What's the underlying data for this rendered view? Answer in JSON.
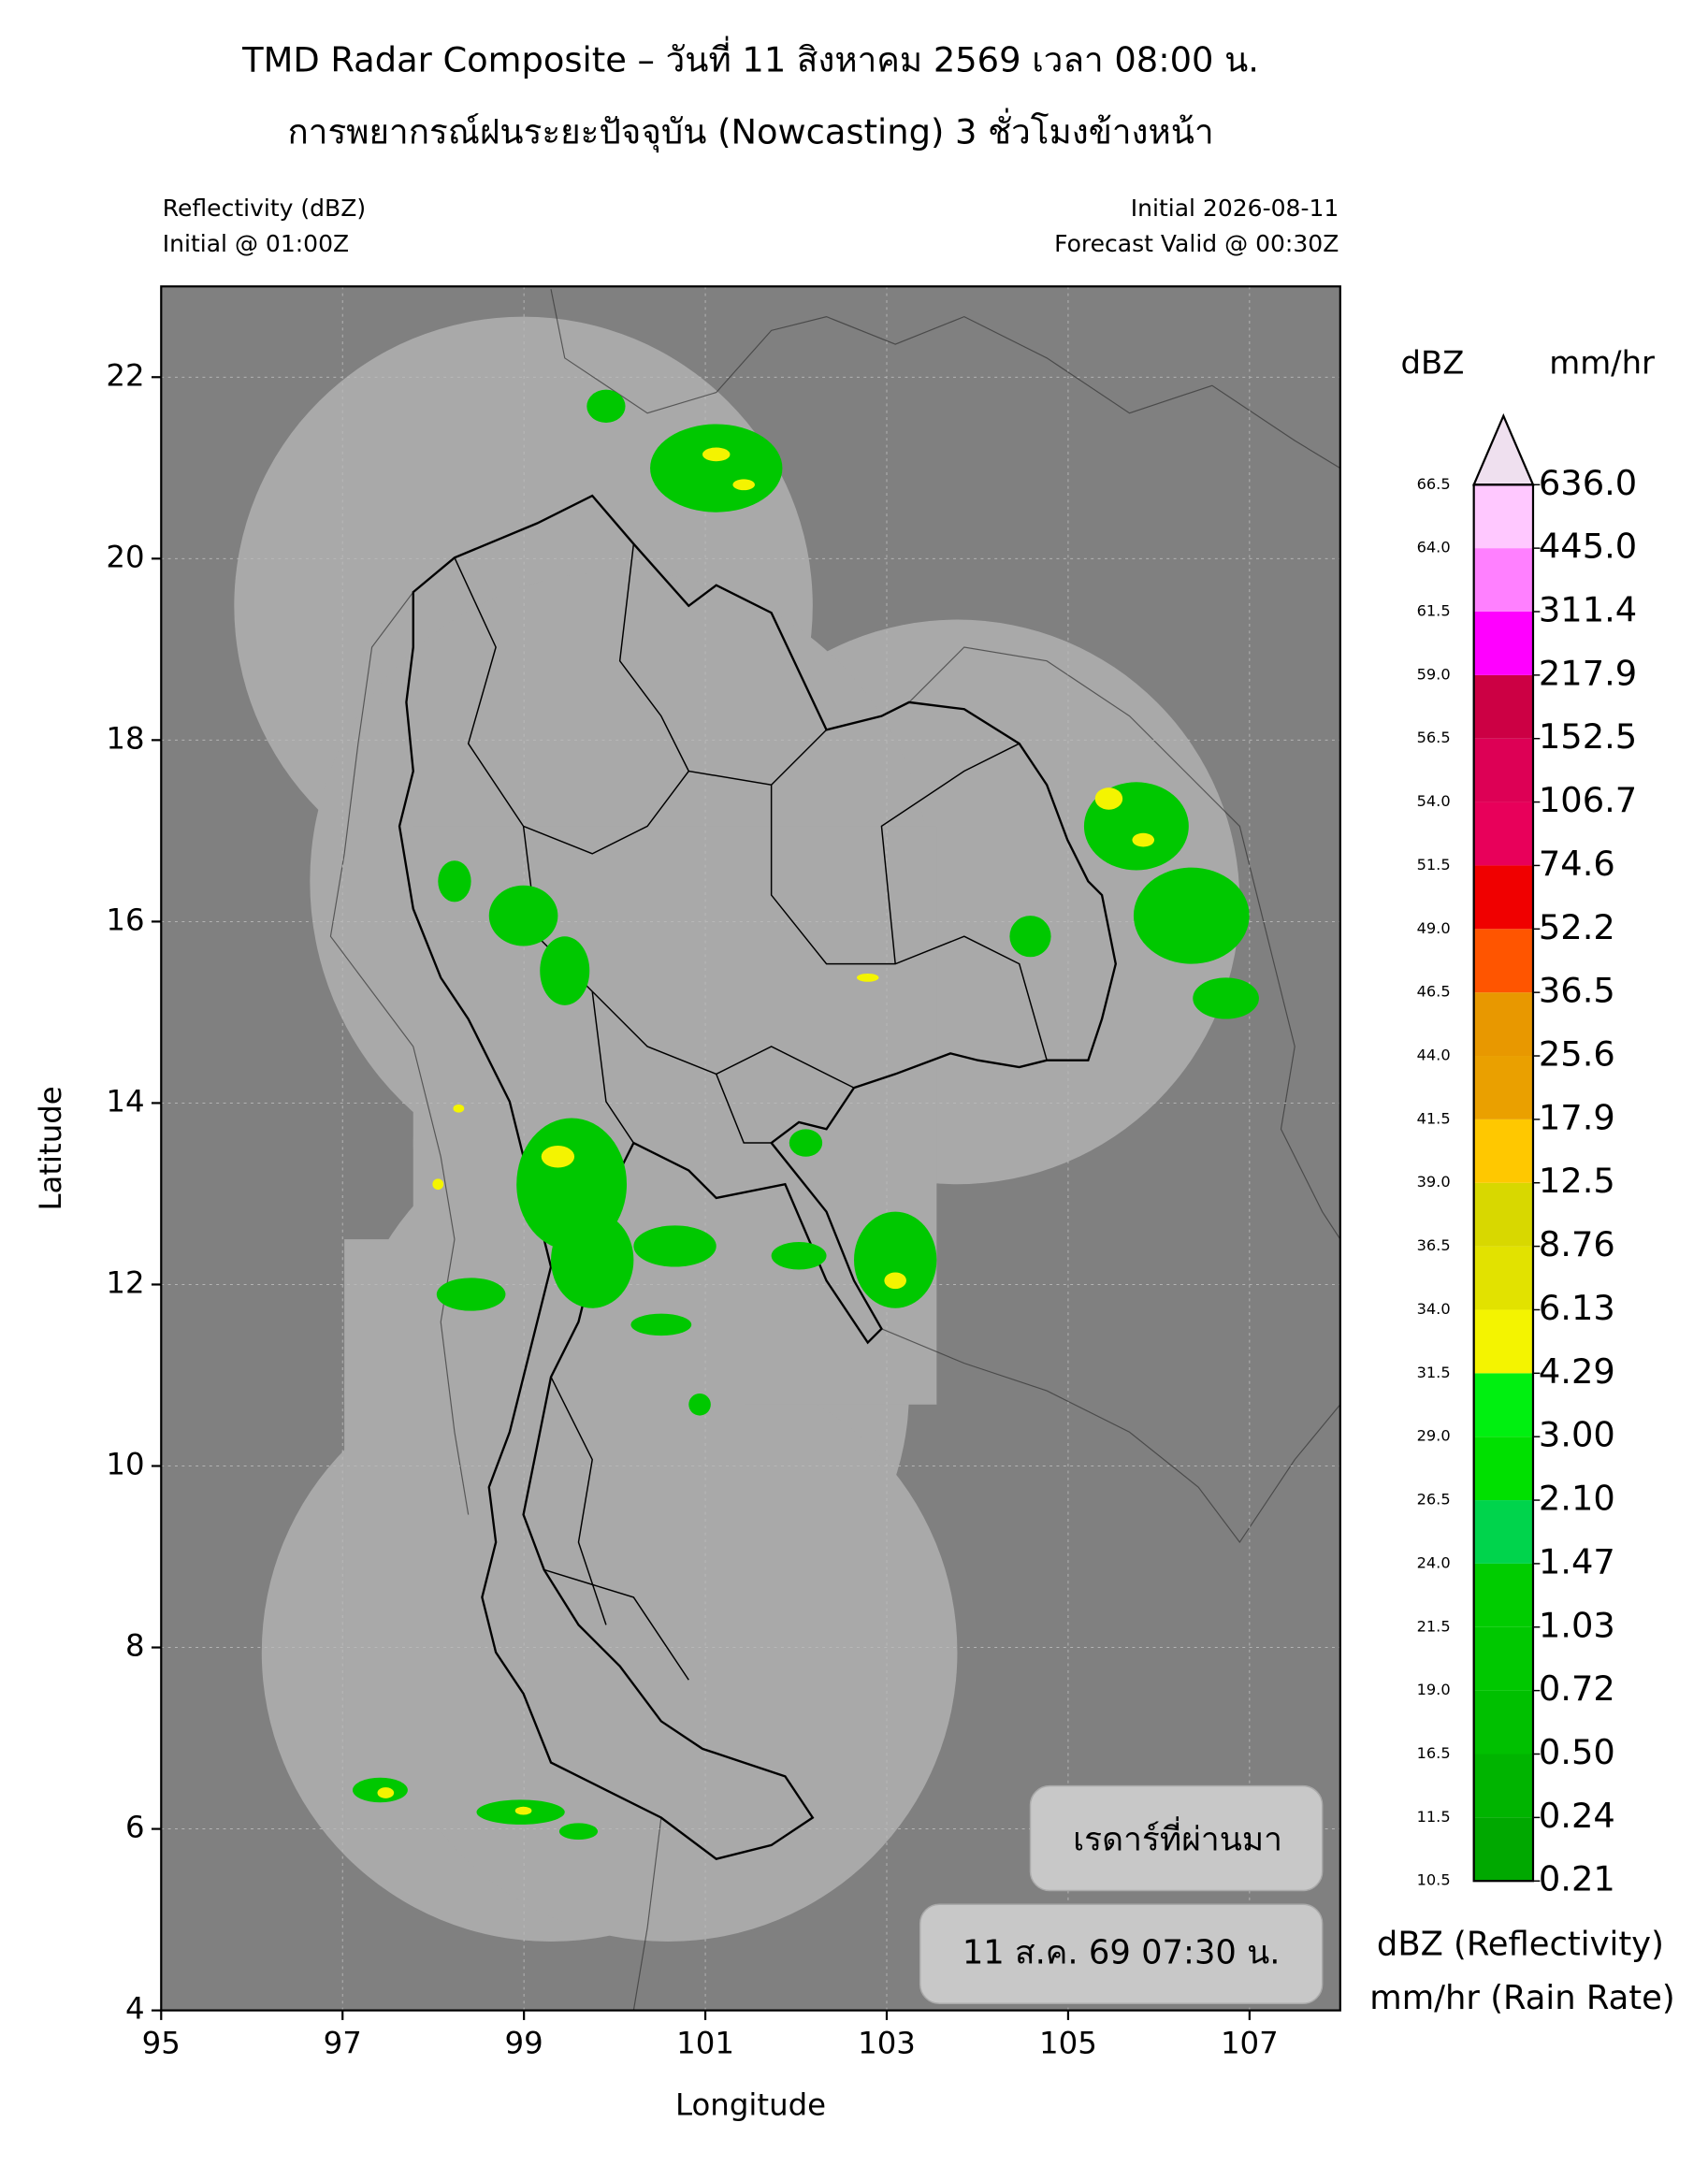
{
  "header": {
    "title_line1": "TMD Radar Composite – วันที่ 11 สิงหาคม 2569 เวลา 08:00 น.",
    "title_line2": "การพยากรณ์ฝนระยะปัจจุบัน (Nowcasting) 3 ชั่วโมงข้างหน้า",
    "left_line1": "Reflectivity (dBZ)",
    "left_line2": "Initial @ 01:00Z",
    "right_line1": "Initial 2026-08-11",
    "right_line2": "Forecast Valid @ 00:30Z"
  },
  "map": {
    "xlabel": "Longitude",
    "ylabel": "Latitude",
    "xlim": [
      95,
      108
    ],
    "ylim": [
      4,
      23
    ],
    "xticks": [
      95,
      97,
      99,
      101,
      103,
      105,
      107
    ],
    "yticks": [
      4,
      6,
      8,
      10,
      12,
      14,
      16,
      18,
      20,
      22
    ]
  },
  "overlay": {
    "label": "เรดาร์ที่ผ่านมา",
    "time": "11 ส.ค. 69 07:30 น."
  },
  "colorbar": {
    "header_left": "dBZ",
    "header_right": "mm/hr",
    "dbz_levels": [
      10.5,
      11.5,
      16.5,
      {
        "value": 19,
        "label": "19.0"
      },
      21.5,
      {
        "value": 24,
        "label": "24.0"
      },
      26.5,
      {
        "value": 29,
        "label": "29.0"
      },
      31.5,
      {
        "value": 34,
        "label": "34.0"
      },
      36.5,
      {
        "value": 39,
        "label": "39.0"
      },
      41.5,
      {
        "value": 44,
        "label": "44.0"
      },
      46.5,
      {
        "value": 49,
        "label": "49.0"
      },
      51.5,
      {
        "value": 54,
        "label": "54.0"
      },
      56.5,
      {
        "value": 59,
        "label": "59.0"
      },
      61.5,
      {
        "value": 64,
        "label": "64.0"
      },
      66.5
    ],
    "rain_levels": [
      0.21,
      0.24,
      {
        "value": 0.5,
        "label": "0.50"
      },
      0.72,
      1.03,
      1.47,
      {
        "value": 2.1,
        "label": "2.10"
      },
      {
        "value": 3,
        "label": "3.00"
      },
      4.29,
      6.13,
      8.76,
      12.5,
      17.9,
      25.6,
      36.5,
      52.2,
      74.6,
      106.7,
      152.5,
      217.9,
      311.4,
      {
        "value": 445,
        "label": "445.0"
      },
      {
        "value": 636,
        "label": "636.0"
      }
    ],
    "colors": [
      "#00a800",
      "#00b400",
      "#00c000",
      "#00c800",
      "#00cc00",
      "#00d44c",
      "#00e000",
      "#00f010",
      "#f4f400",
      "#e2e200",
      "#d8d800",
      "#ffc800",
      "#eaa000",
      "#e89800",
      "#ff5500",
      "#f00000",
      "#e8005a",
      "#dd0055",
      "#cc0044",
      "#ff00ff",
      "#ff80ff",
      "#ffc8ff"
    ],
    "extend_color": "#efe0ef",
    "legend_line1": "dBZ (Reflectivity)",
    "legend_line2": "mm/hr (Rain Rate)"
  }
}
